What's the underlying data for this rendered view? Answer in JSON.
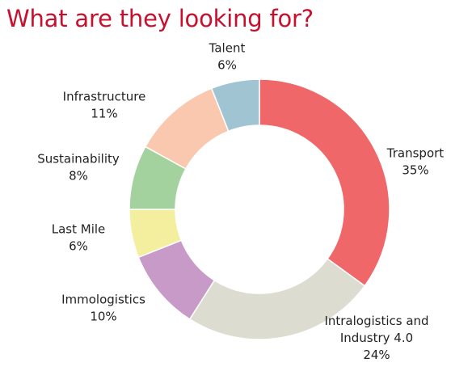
{
  "chart_data": {
    "type": "pie",
    "title": "What are they looking for?",
    "donut": true,
    "slices": [
      {
        "label": "Transport",
        "value": 35,
        "value_label": "35%",
        "color": "#ef6769"
      },
      {
        "label": "Intralogistics and Industry 4.0",
        "label_lines": [
          "Intralogistics and",
          "Industry 4.0"
        ],
        "value": 24,
        "value_label": "24%",
        "color": "#dcdcd0"
      },
      {
        "label": "Immologistics",
        "value": 10,
        "value_label": "10%",
        "color": "#c89ac8"
      },
      {
        "label": "Last Mile",
        "value": 6,
        "value_label": "6%",
        "color": "#f3ef9e"
      },
      {
        "label": "Sustainability",
        "value": 8,
        "value_label": "8%",
        "color": "#a3d29e"
      },
      {
        "label": "Infrastructure",
        "value": 11,
        "value_label": "11%",
        "color": "#f9c8ae"
      },
      {
        "label": "Talent",
        "value": 6,
        "value_label": "6%",
        "color": "#a1c4d3"
      }
    ],
    "start": "top",
    "direction": "clockwise",
    "legend": "none"
  }
}
